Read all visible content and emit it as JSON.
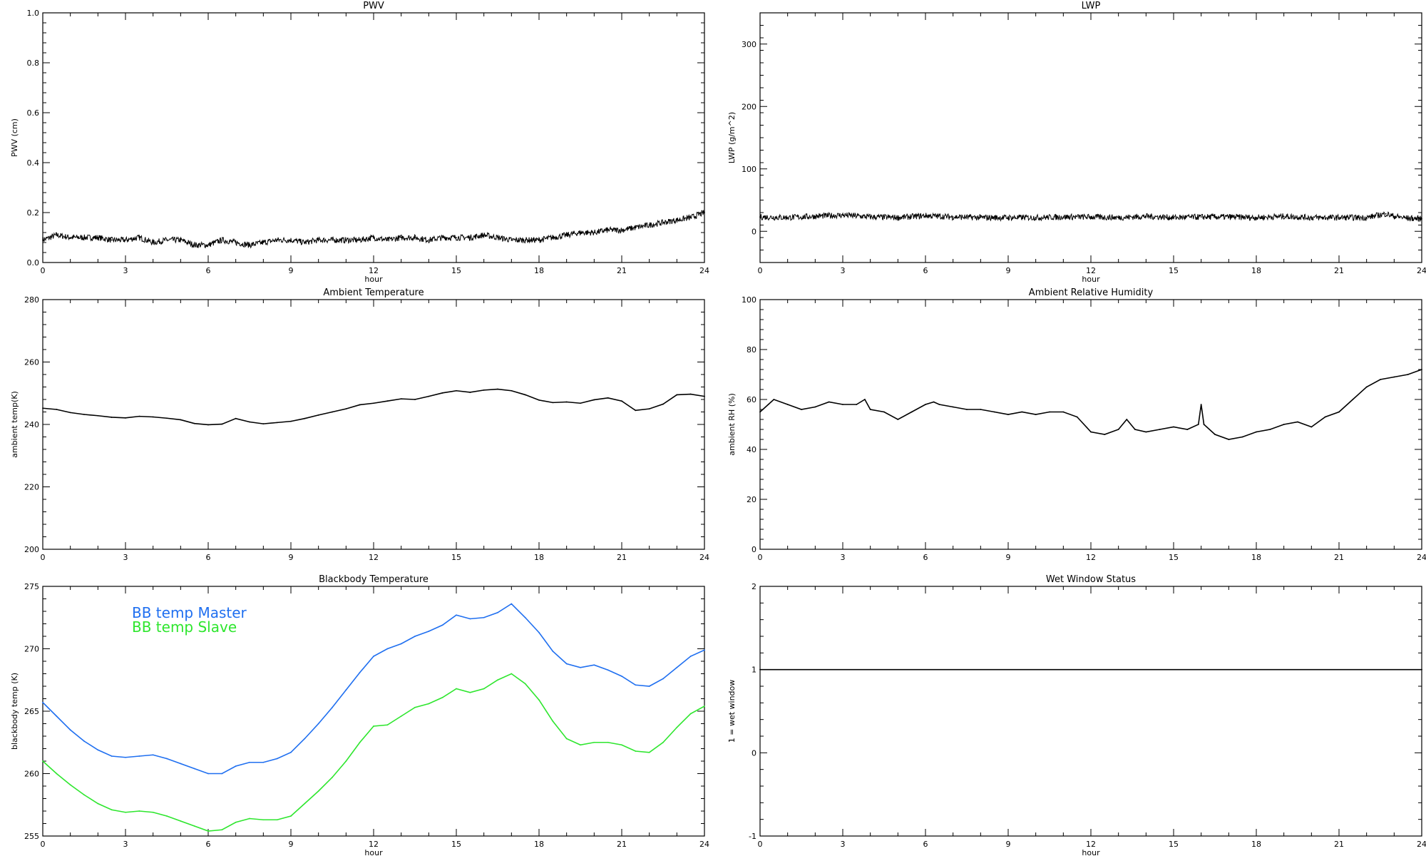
{
  "chart_data": [
    {
      "type": "line",
      "title": "PWV",
      "xlabel": "hour",
      "ylabel": "PWV (cm)",
      "xlim": [
        0,
        24
      ],
      "ylim": [
        0.0,
        1.0
      ],
      "xticks": [
        "0",
        "3",
        "6",
        "9",
        "12",
        "15",
        "18",
        "21",
        "24"
      ],
      "yticks": [
        "0.0",
        "0.2",
        "0.4",
        "0.6",
        "0.8",
        "1.0"
      ],
      "noisy": true,
      "series": [
        {
          "color": "#000000",
          "x": [
            0,
            0.5,
            1,
            1.5,
            2,
            2.5,
            3,
            3.5,
            4,
            4.5,
            5,
            5.5,
            6,
            6.5,
            7,
            7.5,
            8,
            8.5,
            9,
            9.5,
            10,
            10.5,
            11,
            11.5,
            12,
            12.5,
            13,
            13.5,
            14,
            14.5,
            15,
            15.5,
            16,
            16.5,
            17,
            17.5,
            18,
            18.5,
            19,
            19.5,
            20,
            20.5,
            21,
            21.5,
            22,
            22.5,
            23,
            23.5,
            24
          ],
          "y": [
            0.09,
            0.11,
            0.1,
            0.1,
            0.1,
            0.09,
            0.09,
            0.1,
            0.08,
            0.09,
            0.09,
            0.07,
            0.07,
            0.09,
            0.08,
            0.07,
            0.08,
            0.09,
            0.09,
            0.08,
            0.09,
            0.09,
            0.09,
            0.09,
            0.1,
            0.09,
            0.1,
            0.1,
            0.09,
            0.1,
            0.1,
            0.1,
            0.11,
            0.1,
            0.09,
            0.09,
            0.09,
            0.1,
            0.11,
            0.12,
            0.12,
            0.13,
            0.13,
            0.14,
            0.15,
            0.16,
            0.17,
            0.18,
            0.2
          ]
        }
      ]
    },
    {
      "type": "line",
      "title": "LWP",
      "xlabel": "hour",
      "ylabel": "LWP (g/m^2)",
      "xlim": [
        0,
        24
      ],
      "ylim": [
        -50,
        350
      ],
      "xticks": [
        "0",
        "3",
        "6",
        "9",
        "12",
        "15",
        "18",
        "21",
        "24"
      ],
      "yticks": [
        "0",
        "100",
        "200",
        "300"
      ],
      "noisy": true,
      "series": [
        {
          "color": "#000000",
          "x": [
            0,
            1,
            2,
            3,
            4,
            5,
            6,
            7,
            8,
            9,
            10,
            11,
            12,
            13,
            14,
            15,
            16,
            17,
            18,
            19,
            20,
            21,
            22,
            22.7,
            23,
            23.5,
            24
          ],
          "y": [
            23,
            22,
            24,
            26,
            23,
            22,
            25,
            23,
            22,
            22,
            22,
            23,
            23,
            22,
            24,
            22,
            23,
            23,
            22,
            24,
            22,
            22,
            22,
            28,
            24,
            21,
            20
          ]
        }
      ]
    },
    {
      "type": "line",
      "title": "Ambient Temperature",
      "xlabel": "",
      "ylabel": "ambient temp(K)",
      "xlim": [
        0,
        24
      ],
      "ylim": [
        200,
        280
      ],
      "xticks": [
        "0",
        "3",
        "6",
        "9",
        "12",
        "15",
        "18",
        "21",
        "24"
      ],
      "yticks": [
        "200",
        "220",
        "240",
        "260",
        "280"
      ],
      "noisy": false,
      "series": [
        {
          "color": "#000000",
          "x": [
            0,
            0.5,
            1,
            1.5,
            2,
            2.5,
            3,
            3.5,
            4,
            4.5,
            5,
            5.5,
            6,
            6.5,
            7,
            7.5,
            8,
            8.5,
            9,
            9.5,
            10,
            10.5,
            11,
            11.5,
            12,
            12.5,
            13,
            13.5,
            14,
            14.5,
            15,
            15.5,
            16,
            16.5,
            17,
            17.5,
            18,
            18.5,
            19,
            19.5,
            20,
            20.5,
            21,
            21.5,
            22,
            22.5,
            23,
            23.5,
            24
          ],
          "y": [
            245.2,
            244.8,
            243.8,
            243.2,
            242.8,
            242.3,
            242.1,
            242.6,
            242.4,
            242.0,
            241.5,
            240.3,
            239.9,
            240.1,
            241.9,
            240.8,
            240.2,
            240.6,
            241.0,
            241.9,
            243.0,
            244.0,
            245.0,
            246.3,
            246.8,
            247.5,
            248.2,
            248.0,
            249.0,
            250.1,
            250.8,
            250.3,
            251.0,
            251.3,
            250.8,
            249.5,
            247.8,
            247.0,
            247.2,
            246.8,
            247.9,
            248.5,
            247.5,
            244.5,
            245.0,
            246.5,
            249.5,
            249.7,
            249.0
          ]
        }
      ]
    },
    {
      "type": "line",
      "title": "Ambient Relative Humidity",
      "xlabel": "",
      "ylabel": "ambient RH (%)",
      "xlim": [
        0,
        24
      ],
      "ylim": [
        0,
        100
      ],
      "xticks": [
        "0",
        "3",
        "6",
        "9",
        "12",
        "15",
        "18",
        "21",
        "24"
      ],
      "yticks": [
        "0",
        "20",
        "40",
        "60",
        "80",
        "100"
      ],
      "noisy": false,
      "series": [
        {
          "color": "#000000",
          "x": [
            0,
            0.3,
            0.5,
            1,
            1.5,
            2,
            2.5,
            3,
            3.5,
            3.8,
            4,
            4.5,
            5,
            5.5,
            6,
            6.3,
            6.5,
            7,
            7.5,
            8,
            8.5,
            9,
            9.5,
            10,
            10.5,
            11,
            11.5,
            12,
            12.5,
            13,
            13.3,
            13.6,
            14,
            14.5,
            15,
            15.5,
            15.9,
            16,
            16.1,
            16.5,
            17,
            17.5,
            18,
            18.5,
            19,
            19.5,
            20,
            20.5,
            21,
            21.5,
            22,
            22.5,
            23,
            23.5,
            24
          ],
          "y": [
            55,
            58,
            60,
            58,
            56,
            57,
            59,
            58,
            58,
            60,
            56,
            55,
            52,
            55,
            58,
            59,
            58,
            57,
            56,
            56,
            55,
            54,
            55,
            54,
            55,
            55,
            53,
            47,
            46,
            48,
            52,
            48,
            47,
            48,
            49,
            48,
            50,
            58,
            50,
            46,
            44,
            45,
            47,
            48,
            50,
            51,
            49,
            53,
            55,
            60,
            65,
            68,
            69,
            70,
            72
          ]
        }
      ]
    },
    {
      "type": "line",
      "title": "Blackbody Temperature",
      "xlabel": "hour",
      "ylabel": "blackbody temp (K)",
      "xlim": [
        0,
        24
      ],
      "ylim": [
        255,
        275
      ],
      "xticks": [
        "0",
        "3",
        "6",
        "9",
        "12",
        "15",
        "18",
        "21",
        "24"
      ],
      "yticks": [
        "255",
        "260",
        "265",
        "270",
        "275"
      ],
      "noisy": false,
      "series": [
        {
          "name": "BB temp Master",
          "color": "#1f6ff0",
          "x": [
            0,
            0.5,
            1,
            1.5,
            2,
            2.5,
            3,
            3.5,
            4,
            4.5,
            5,
            5.5,
            6,
            6.5,
            7,
            7.5,
            8,
            8.5,
            9,
            9.5,
            10,
            10.5,
            11,
            11.5,
            12,
            12.5,
            13,
            13.5,
            14,
            14.5,
            15,
            15.5,
            16,
            16.5,
            17,
            17.5,
            18,
            18.5,
            19,
            19.5,
            20,
            20.5,
            21,
            21.5,
            22,
            22.5,
            23,
            23.5,
            24
          ],
          "y": [
            265.7,
            264.6,
            263.5,
            262.6,
            261.9,
            261.4,
            261.3,
            261.4,
            261.5,
            261.2,
            260.8,
            260.4,
            260.0,
            260.0,
            260.6,
            260.9,
            260.9,
            261.2,
            261.7,
            262.8,
            264.0,
            265.3,
            266.7,
            268.1,
            269.4,
            270.0,
            270.4,
            271.0,
            271.4,
            271.9,
            272.7,
            272.4,
            272.5,
            272.9,
            273.6,
            272.5,
            271.3,
            269.8,
            268.8,
            268.5,
            268.7,
            268.3,
            267.8,
            267.1,
            267.0,
            267.6,
            268.5,
            269.4,
            269.9
          ]
        },
        {
          "name": "BB temp Slave",
          "color": "#2ee62e",
          "x": [
            0,
            0.5,
            1,
            1.5,
            2,
            2.5,
            3,
            3.5,
            4,
            4.5,
            5,
            5.5,
            6,
            6.5,
            7,
            7.5,
            8,
            8.5,
            9,
            9.5,
            10,
            10.5,
            11,
            11.5,
            12,
            12.5,
            13,
            13.5,
            14,
            14.5,
            15,
            15.5,
            16,
            16.5,
            17,
            17.5,
            18,
            18.5,
            19,
            19.5,
            20,
            20.5,
            21,
            21.5,
            22,
            22.5,
            23,
            23.5,
            24
          ],
          "y": [
            261.0,
            260.0,
            259.1,
            258.3,
            257.6,
            257.1,
            256.9,
            257.0,
            256.9,
            256.6,
            256.2,
            255.8,
            255.4,
            255.5,
            256.1,
            256.4,
            256.3,
            256.3,
            256.6,
            257.6,
            258.6,
            259.7,
            261.0,
            262.5,
            263.8,
            263.9,
            264.6,
            265.3,
            265.6,
            266.1,
            266.8,
            266.5,
            266.8,
            267.5,
            268.0,
            267.2,
            265.9,
            264.2,
            262.8,
            262.3,
            262.5,
            262.5,
            262.3,
            261.8,
            261.7,
            262.5,
            263.7,
            264.8,
            265.4
          ]
        }
      ],
      "legend_position": "top-left"
    },
    {
      "type": "line",
      "title": "Wet Window Status",
      "xlabel": "hour",
      "ylabel": "1 = wet window",
      "xlim": [
        0,
        24
      ],
      "ylim": [
        -1,
        2
      ],
      "xticks": [
        "0",
        "3",
        "6",
        "9",
        "12",
        "15",
        "18",
        "21",
        "24"
      ],
      "yticks": [
        "-1",
        "0",
        "1",
        "2"
      ],
      "noisy": false,
      "series": [
        {
          "color": "#000000",
          "x": [
            0,
            24
          ],
          "y": [
            1,
            1
          ]
        }
      ]
    }
  ]
}
